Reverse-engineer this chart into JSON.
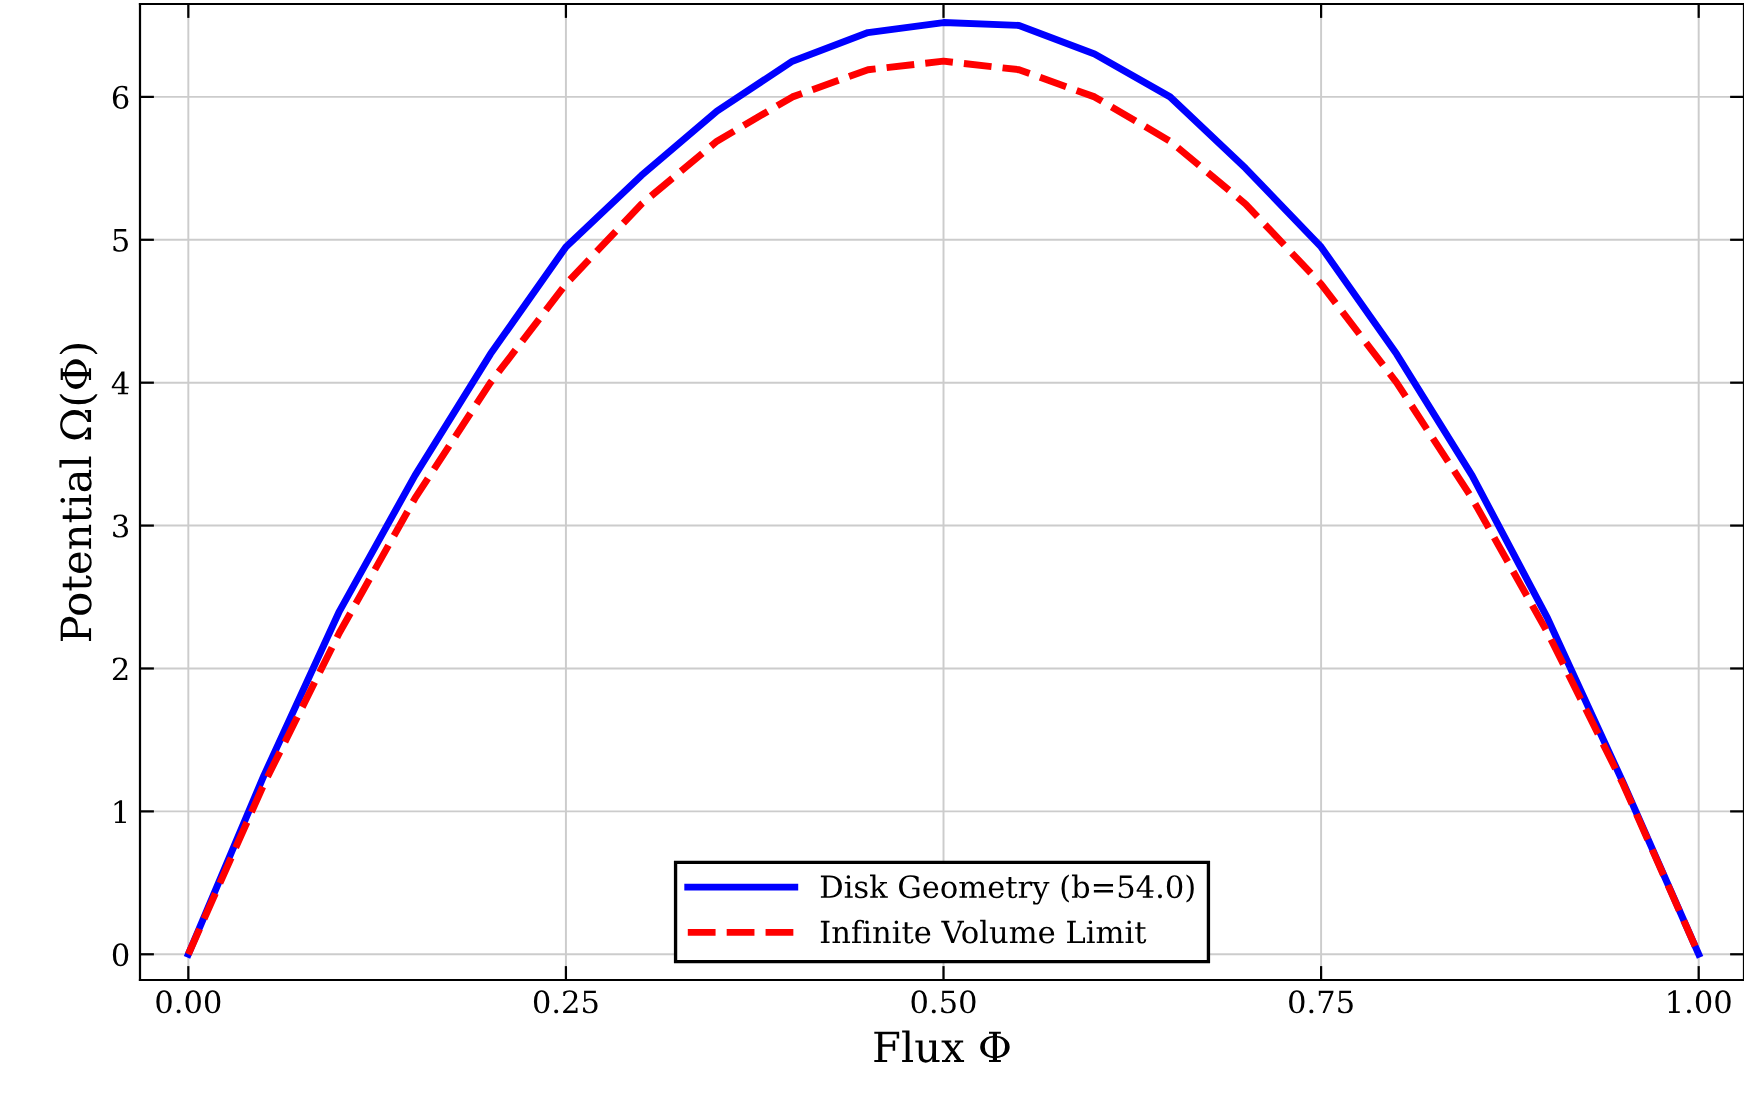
{
  "chart_data": {
    "type": "line",
    "xlabel": "Flux Φ",
    "ylabel": "Potential Ω(Φ)",
    "x": [
      0,
      0.05,
      0.1,
      0.15,
      0.2,
      0.25,
      0.3,
      0.35,
      0.4,
      0.45,
      0.5,
      0.55,
      0.6,
      0.65,
      0.7,
      0.75,
      0.8,
      0.85,
      0.9,
      0.95,
      1.0
    ],
    "series": [
      {
        "name": "Disk Geometry (b=54.0)",
        "color": "#0000ff",
        "line_style": "solid",
        "values": [
          0,
          1.25,
          2.4,
          3.35,
          4.2,
          4.95,
          5.45,
          5.9,
          6.25,
          6.45,
          6.52,
          6.5,
          6.3,
          6.0,
          5.5,
          4.95,
          4.2,
          3.35,
          2.35,
          1.2,
          0
        ]
      },
      {
        "name": "Infinite Volume Limit",
        "color": "#ff0000",
        "line_style": "dashed",
        "values": [
          0,
          1.19,
          2.25,
          3.19,
          4.0,
          4.69,
          5.25,
          5.69,
          6.0,
          6.19,
          6.25,
          6.19,
          6.0,
          5.69,
          5.25,
          4.69,
          4.0,
          3.19,
          2.25,
          1.19,
          0
        ]
      }
    ],
    "xlim": [
      -0.032,
      1.03
    ],
    "ylim": [
      -0.18,
      6.65
    ],
    "xticks": [
      {
        "value": 0,
        "label": "0.00"
      },
      {
        "value": 0.25,
        "label": "0.25"
      },
      {
        "value": 0.5,
        "label": "0.50"
      },
      {
        "value": 0.75,
        "label": "0.75"
      },
      {
        "value": 1.0,
        "label": "1.00"
      }
    ],
    "yticks": [
      0,
      1,
      2,
      3,
      4,
      5,
      6
    ],
    "grid": true,
    "legend": "bottom",
    "marker": "none"
  }
}
